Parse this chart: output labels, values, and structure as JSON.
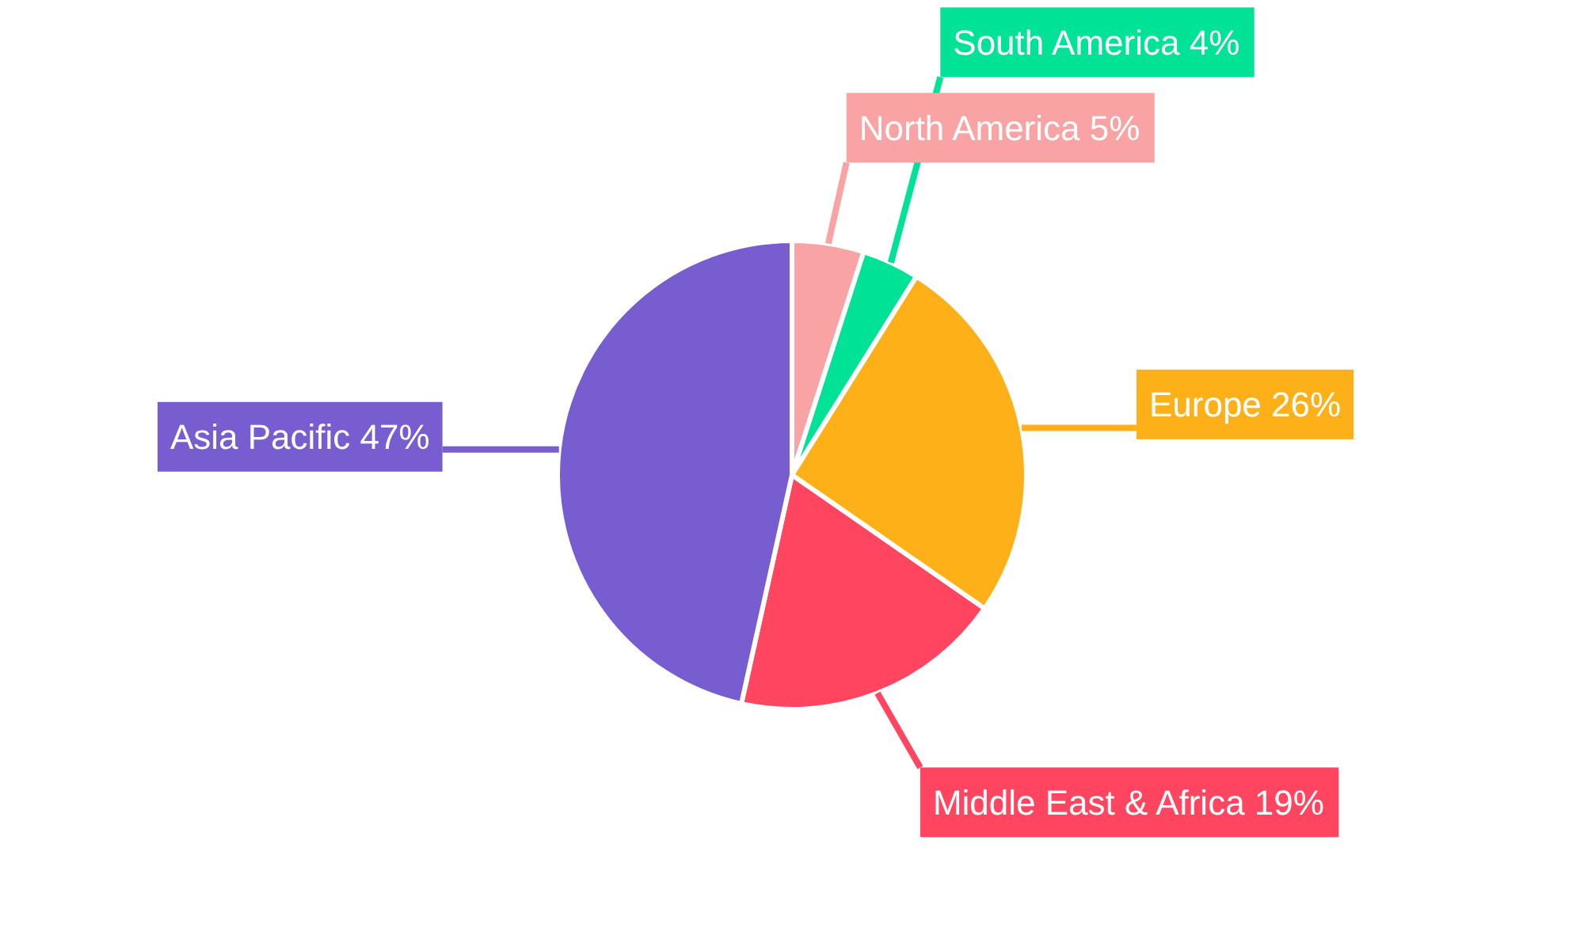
{
  "chart_data": {
    "type": "pie",
    "categories": [
      "North America",
      "South America",
      "Europe",
      "Middle East & Africa",
      "Asia Pacific"
    ],
    "values": [
      5,
      4,
      26,
      19,
      47
    ],
    "value_labels": [
      "5%",
      "4%",
      "26%",
      "19%",
      "47%"
    ],
    "colors": [
      "#f9a3a4",
      "#00e396",
      "#feb019",
      "#ff4560",
      "#775dd0"
    ],
    "legend": false
  }
}
